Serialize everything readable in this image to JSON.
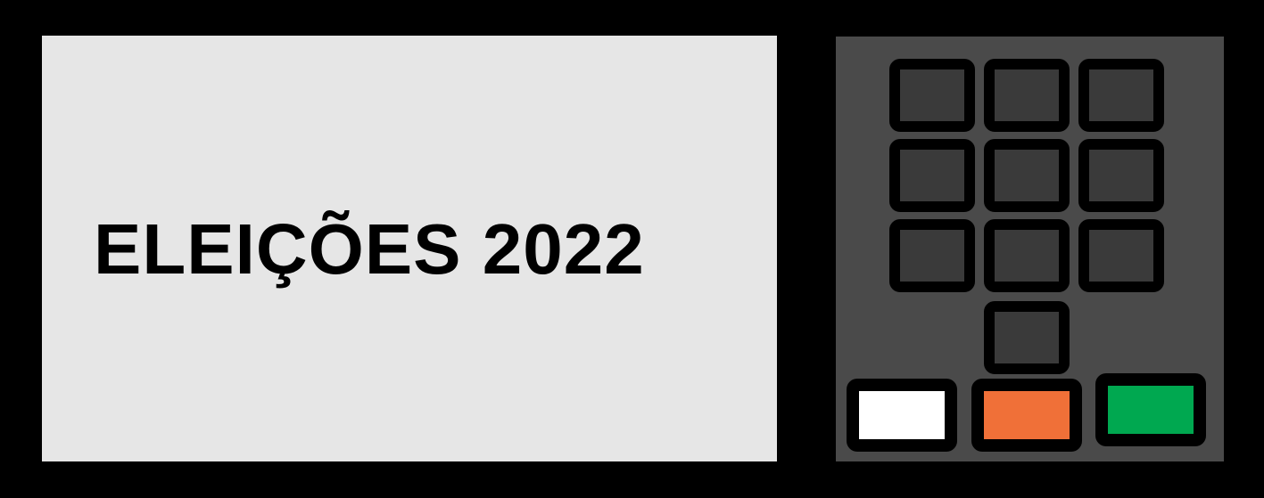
{
  "screen": {
    "title": "ELEIÇÕES 2022"
  },
  "keypad": {
    "number_keys": 10,
    "action_keys": [
      {
        "color": "#ffffff"
      },
      {
        "color": "#f07038"
      },
      {
        "color": "#00a850"
      }
    ]
  },
  "colors": {
    "body": "#000000",
    "screen": "#e6e6e6",
    "keypad_panel": "#4a4a4a",
    "key_face": "#3a3a3a"
  }
}
